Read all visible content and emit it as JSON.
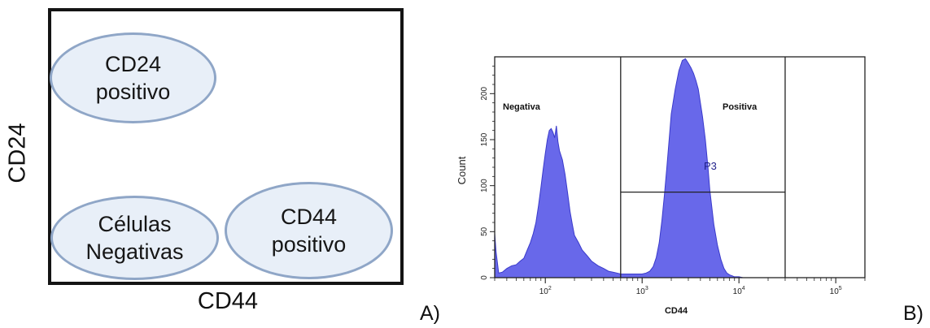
{
  "panel_a": {
    "y_axis_label": "CD24",
    "x_axis_label": "CD44",
    "regions": [
      {
        "line1": "CD24",
        "line2": "positivo"
      },
      {
        "line1": "Células",
        "line2": "Negativas"
      },
      {
        "line1": "CD44",
        "line2": "positivo"
      }
    ],
    "panel_letter": "A)",
    "colors": {
      "ellipse_fill": "#e8eff8",
      "ellipse_border": "#8fa6c7",
      "frame": "#141414"
    }
  },
  "panel_b": {
    "panel_letter": "B)"
  },
  "chart_data": {
    "type": "area",
    "xlabel": "CD44",
    "ylabel": "Count",
    "x_scale": "log",
    "xlim": [
      30,
      200000
    ],
    "ylim": [
      0,
      240
    ],
    "x_tick_labels": [
      "10^2",
      "10^3",
      "10^4",
      "10^5"
    ],
    "y_tick_labels": [
      "0",
      "50",
      "100",
      "150",
      "200"
    ],
    "y_ticks": [
      0,
      50,
      100,
      150,
      200
    ],
    "region_labels": [
      "Negativa",
      "Positiva"
    ],
    "gate_label": "P3",
    "gate_dividers_x": [
      600,
      30000
    ],
    "gate_level_y": 93,
    "series_color": "#5b5be8",
    "series": [
      {
        "x": [
          30,
          31,
          33,
          36,
          40,
          45,
          50,
          55,
          60,
          65,
          70,
          75,
          80,
          85,
          90,
          95,
          100,
          105,
          110,
          115,
          120,
          125,
          130,
          135,
          140,
          150,
          160,
          170,
          180,
          190,
          200,
          220,
          240,
          270,
          300,
          350,
          400,
          450,
          500,
          550,
          600,
          650,
          700,
          800,
          900,
          1000,
          1100,
          1200,
          1300,
          1400,
          1500,
          1600,
          1700,
          1800,
          1900,
          2000,
          2200,
          2400,
          2600,
          2800,
          3000,
          3200,
          3400,
          3600,
          3800,
          4000,
          4200,
          4500,
          4800,
          5000,
          5500,
          6000,
          6500,
          7000,
          7500,
          8000,
          8500,
          9000,
          10000,
          11000,
          12000,
          14000,
          16000,
          20000,
          30000,
          50000,
          100000,
          200000
        ],
        "values": [
          48,
          28,
          5,
          6,
          10,
          13,
          14,
          18,
          21,
          30,
          38,
          48,
          60,
          78,
          98,
          118,
          135,
          150,
          160,
          162,
          158,
          152,
          165,
          148,
          138,
          128,
          112,
          92,
          72,
          58,
          46,
          38,
          30,
          24,
          18,
          13,
          10,
          7,
          6,
          5,
          4,
          4,
          4,
          4,
          4,
          4,
          5,
          7,
          12,
          22,
          38,
          62,
          90,
          120,
          150,
          178,
          205,
          225,
          236,
          238,
          233,
          228,
          222,
          214,
          205,
          190,
          175,
          150,
          118,
          95,
          58,
          35,
          20,
          10,
          5,
          3,
          2,
          1,
          1,
          0,
          0,
          0,
          0,
          0,
          0,
          0,
          0,
          0
        ]
      }
    ]
  }
}
